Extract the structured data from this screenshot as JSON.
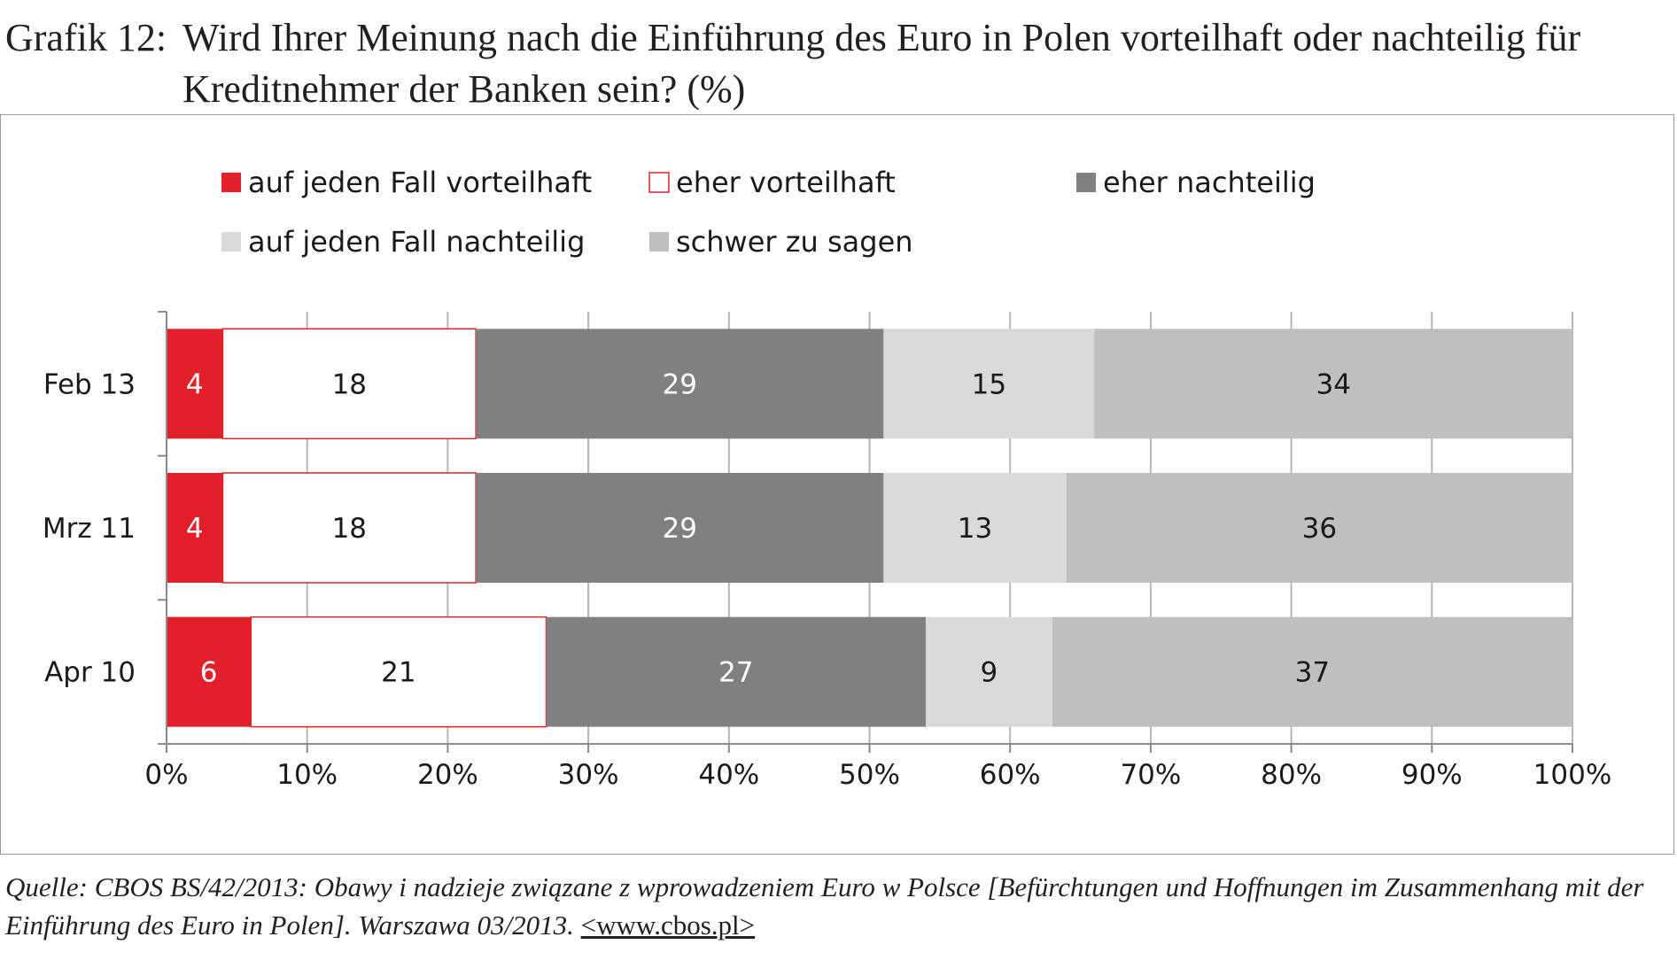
{
  "title": {
    "label": "Grafik 12:",
    "text": "Wird Ihrer Meinung nach die Einführung des Euro in Polen vorteilhaft oder nachteilig für Kreditnehmer der Banken sein? (%)"
  },
  "chart_data": {
    "type": "bar",
    "orientation": "horizontal",
    "stacked": true,
    "categories": [
      "Feb 13",
      "Mrz 11",
      "Apr 10"
    ],
    "series": [
      {
        "name": "auf jeden Fall vorteilhaft",
        "values": [
          4,
          4,
          6
        ],
        "color": "#e3202a",
        "label_color": "#ffffff"
      },
      {
        "name": "eher vorteilhaft",
        "values": [
          18,
          18,
          21
        ],
        "color": "#ffffff",
        "border": "#e3202a",
        "label_color": "#1a1a1a"
      },
      {
        "name": "eher nachteilig",
        "values": [
          29,
          29,
          27
        ],
        "color": "#808080",
        "label_color": "#ffffff"
      },
      {
        "name": "auf jeden Fall nachteilig",
        "values": [
          15,
          13,
          9
        ],
        "color": "#d9d9d9",
        "label_color": "#1a1a1a"
      },
      {
        "name": "schwer zu sagen",
        "values": [
          34,
          36,
          37
        ],
        "color": "#bfbfbf",
        "label_color": "#1a1a1a"
      }
    ],
    "xlim": [
      0,
      100
    ],
    "x_ticks": [
      "0%",
      "10%",
      "20%",
      "30%",
      "40%",
      "50%",
      "60%",
      "70%",
      "80%",
      "90%",
      "100%"
    ],
    "grid": true,
    "legend_position": "top"
  },
  "source": {
    "text": "Quelle: CBOS BS/42/2013: Obawy i nadzieje związane z wprowadzeniem Euro w Polsce [Befürchtungen und Hoffnungen im Zusammenhang mit der Einführung des Euro in Polen]. Warszawa 03/2013.",
    "url": "<www.cbos.pl>"
  }
}
